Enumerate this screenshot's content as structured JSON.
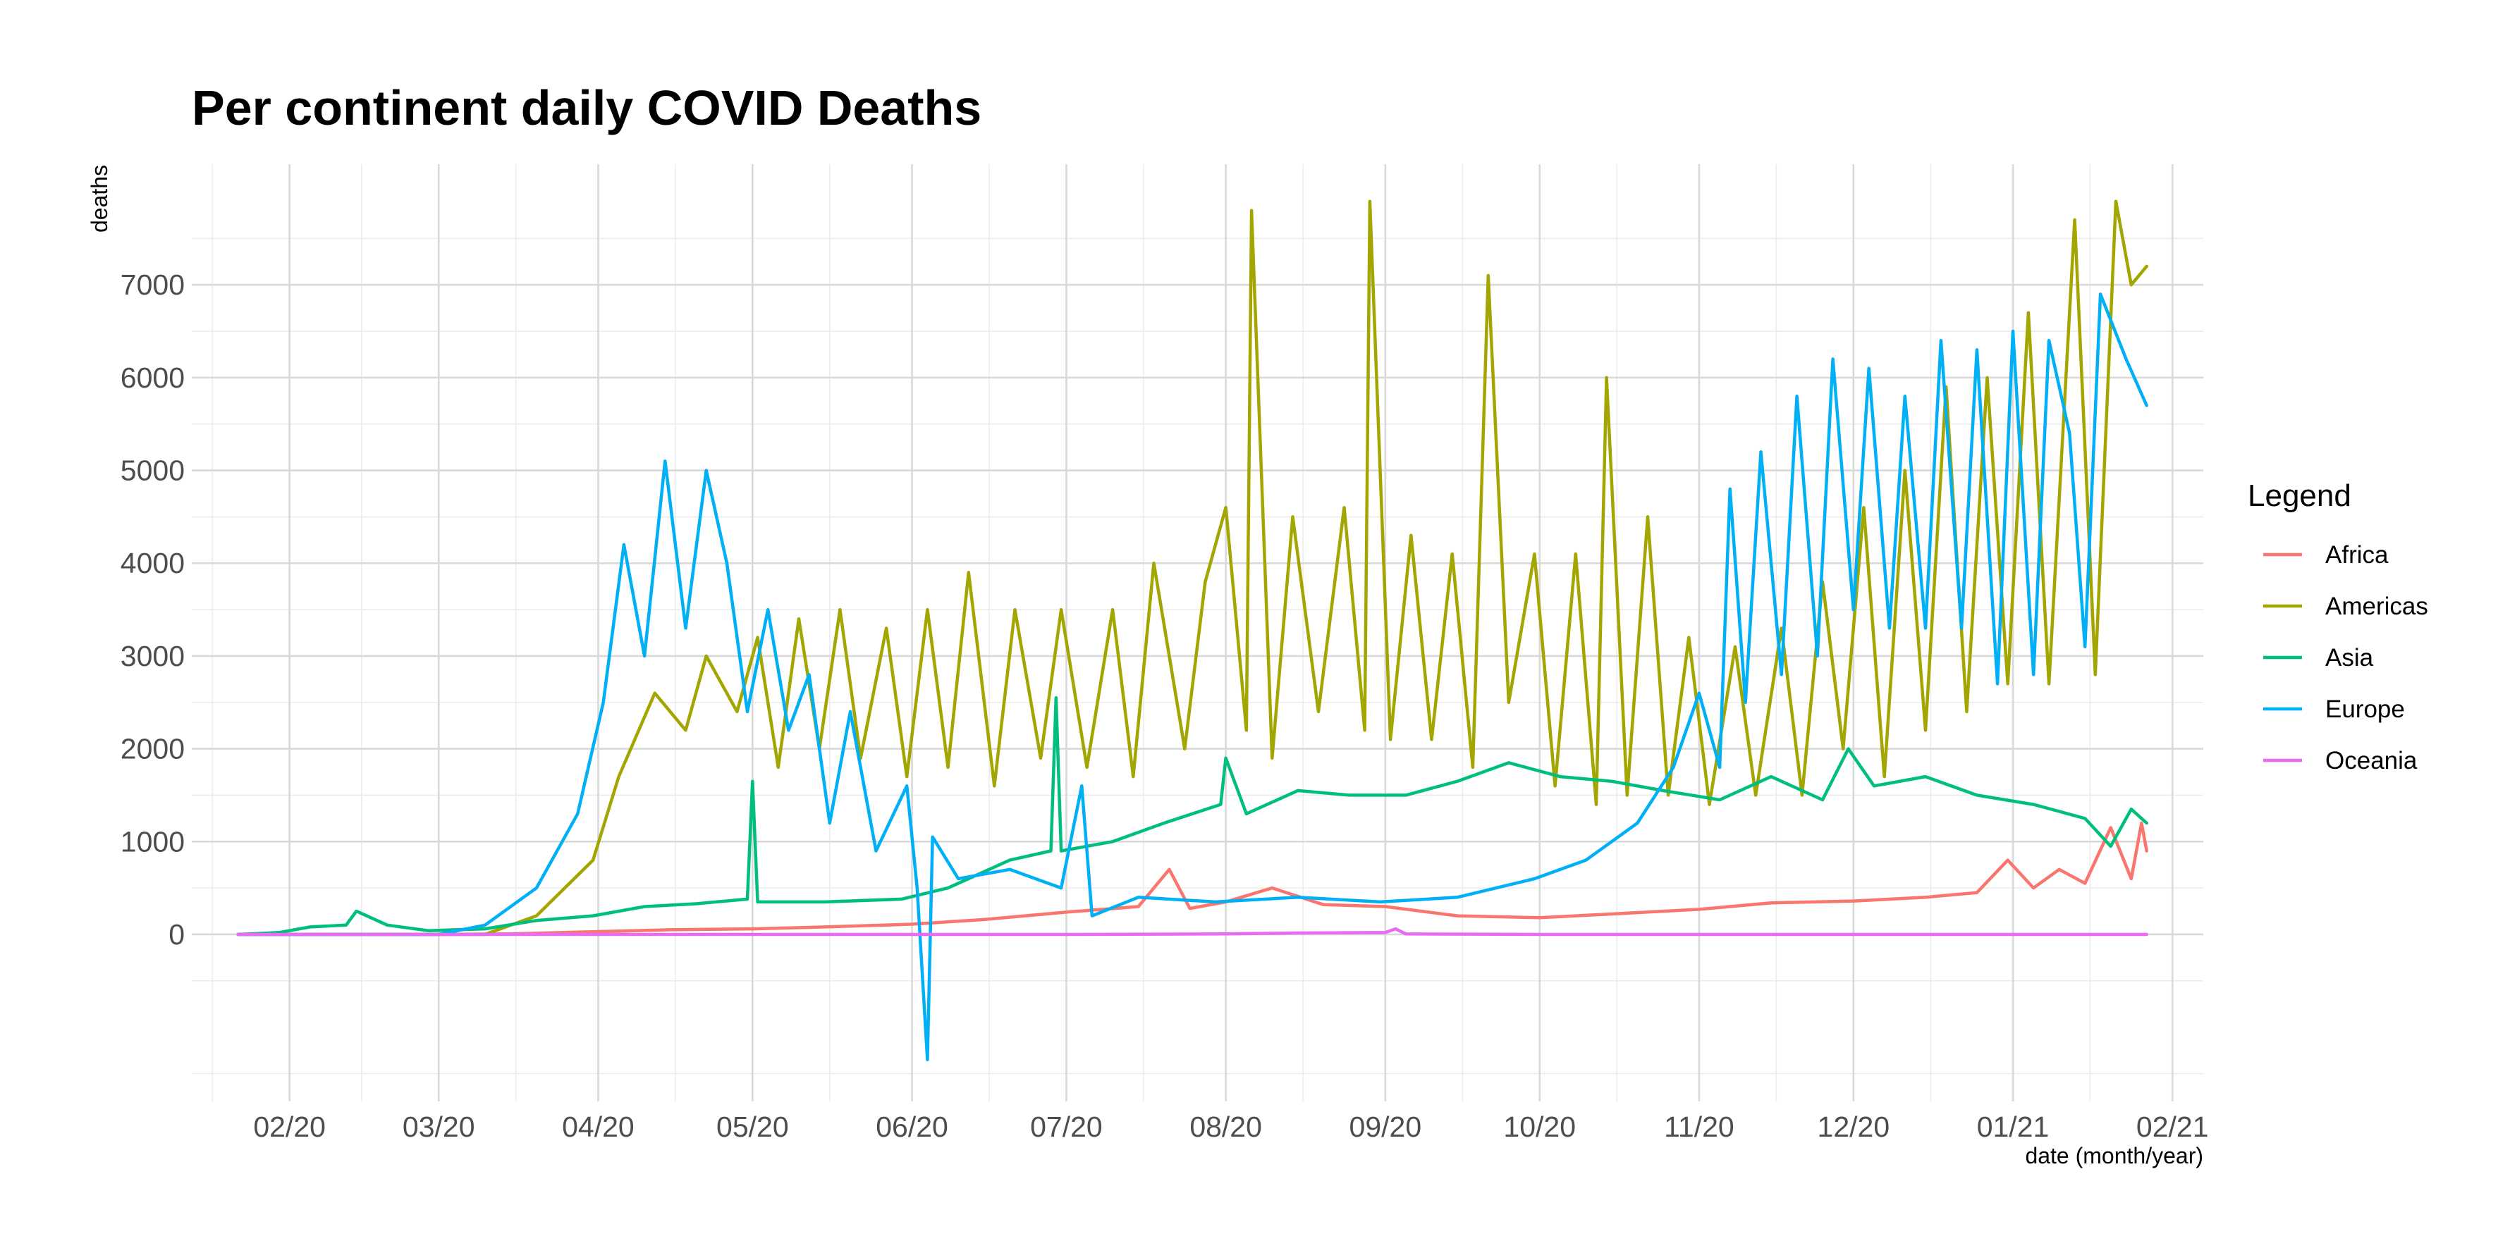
{
  "chart_data": {
    "type": "line",
    "title": "Per continent daily COVID Deaths",
    "xlabel": "date (month/year)",
    "ylabel": "deaths",
    "x_range": [
      "2020-01-22",
      "2021-01-27"
    ],
    "xlim": [
      "2020-01-13",
      "2021-02-07"
    ],
    "ylim": [
      -1800,
      8300
    ],
    "x_ticks": [
      "2020-02-01",
      "2020-03-01",
      "2020-04-01",
      "2020-05-01",
      "2020-06-01",
      "2020-07-01",
      "2020-08-01",
      "2020-09-01",
      "2020-10-01",
      "2020-11-01",
      "2020-12-01",
      "2021-01-01",
      "2021-02-01"
    ],
    "x_tick_labels": [
      "02/20",
      "03/20",
      "04/20",
      "05/20",
      "06/20",
      "07/20",
      "08/20",
      "09/20",
      "10/20",
      "11/20",
      "12/20",
      "01/21",
      "02/21"
    ],
    "y_ticks": [
      0,
      1000,
      2000,
      3000,
      4000,
      5000,
      6000,
      7000
    ],
    "y_tick_labels": [
      "0",
      "1000",
      "2000",
      "3000",
      "4000",
      "5000",
      "6000",
      "7000"
    ],
    "grid": true,
    "legend": {
      "title": "Legend",
      "position": "right"
    },
    "series": [
      {
        "name": "Africa",
        "color": "#F8766D",
        "points": [
          [
            "2020-01-22",
            0
          ],
          [
            "2020-03-01",
            0
          ],
          [
            "2020-03-15",
            5
          ],
          [
            "2020-04-01",
            30
          ],
          [
            "2020-04-15",
            50
          ],
          [
            "2020-05-01",
            60
          ],
          [
            "2020-05-15",
            80
          ],
          [
            "2020-06-01",
            110
          ],
          [
            "2020-06-15",
            160
          ],
          [
            "2020-07-01",
            240
          ],
          [
            "2020-07-15",
            300
          ],
          [
            "2020-07-21",
            700
          ],
          [
            "2020-07-25",
            280
          ],
          [
            "2020-08-01",
            350
          ],
          [
            "2020-08-10",
            500
          ],
          [
            "2020-08-20",
            320
          ],
          [
            "2020-09-01",
            300
          ],
          [
            "2020-09-15",
            200
          ],
          [
            "2020-10-01",
            180
          ],
          [
            "2020-10-15",
            220
          ],
          [
            "2020-11-01",
            270
          ],
          [
            "2020-11-15",
            340
          ],
          [
            "2020-12-01",
            360
          ],
          [
            "2020-12-15",
            400
          ],
          [
            "2020-12-25",
            450
          ],
          [
            "2020-12-31",
            800
          ],
          [
            "2021-01-05",
            500
          ],
          [
            "2021-01-10",
            700
          ],
          [
            "2021-01-15",
            550
          ],
          [
            "2021-01-20",
            1150
          ],
          [
            "2021-01-24",
            600
          ],
          [
            "2021-01-26",
            1200
          ],
          [
            "2021-01-27",
            900
          ]
        ]
      },
      {
        "name": "Americas",
        "color": "#A3A500",
        "points": [
          [
            "2020-01-22",
            0
          ],
          [
            "2020-03-10",
            0
          ],
          [
            "2020-03-20",
            200
          ],
          [
            "2020-03-31",
            800
          ],
          [
            "2020-04-05",
            1700
          ],
          [
            "2020-04-12",
            2600
          ],
          [
            "2020-04-18",
            2200
          ],
          [
            "2020-04-22",
            3000
          ],
          [
            "2020-04-28",
            2400
          ],
          [
            "2020-05-02",
            3200
          ],
          [
            "2020-05-06",
            1800
          ],
          [
            "2020-05-10",
            3400
          ],
          [
            "2020-05-14",
            2000
          ],
          [
            "2020-05-18",
            3500
          ],
          [
            "2020-05-22",
            1900
          ],
          [
            "2020-05-27",
            3300
          ],
          [
            "2020-05-31",
            1700
          ],
          [
            "2020-06-04",
            3500
          ],
          [
            "2020-06-08",
            1800
          ],
          [
            "2020-06-12",
            3900
          ],
          [
            "2020-06-17",
            1600
          ],
          [
            "2020-06-21",
            3500
          ],
          [
            "2020-06-26",
            1900
          ],
          [
            "2020-06-30",
            3500
          ],
          [
            "2020-07-05",
            1800
          ],
          [
            "2020-07-10",
            3500
          ],
          [
            "2020-07-14",
            1700
          ],
          [
            "2020-07-18",
            4000
          ],
          [
            "2020-07-24",
            2000
          ],
          [
            "2020-07-28",
            3800
          ],
          [
            "2020-08-01",
            4600
          ],
          [
            "2020-08-05",
            2200
          ],
          [
            "2020-08-06",
            7800
          ],
          [
            "2020-08-10",
            1900
          ],
          [
            "2020-08-14",
            4500
          ],
          [
            "2020-08-19",
            2400
          ],
          [
            "2020-08-24",
            4600
          ],
          [
            "2020-08-28",
            2200
          ],
          [
            "2020-08-29",
            7900
          ],
          [
            "2020-09-02",
            2100
          ],
          [
            "2020-09-06",
            4300
          ],
          [
            "2020-09-10",
            2100
          ],
          [
            "2020-09-14",
            4100
          ],
          [
            "2020-09-18",
            1800
          ],
          [
            "2020-09-21",
            7100
          ],
          [
            "2020-09-25",
            2500
          ],
          [
            "2020-09-30",
            4100
          ],
          [
            "2020-10-04",
            1600
          ],
          [
            "2020-10-08",
            4100
          ],
          [
            "2020-10-12",
            1400
          ],
          [
            "2020-10-14",
            6000
          ],
          [
            "2020-10-18",
            1500
          ],
          [
            "2020-10-22",
            4500
          ],
          [
            "2020-10-26",
            1500
          ],
          [
            "2020-10-30",
            3200
          ],
          [
            "2020-11-03",
            1400
          ],
          [
            "2020-11-08",
            3100
          ],
          [
            "2020-11-12",
            1500
          ],
          [
            "2020-11-17",
            3300
          ],
          [
            "2020-11-21",
            1500
          ],
          [
            "2020-11-25",
            3800
          ],
          [
            "2020-11-29",
            2000
          ],
          [
            "2020-12-03",
            4600
          ],
          [
            "2020-12-07",
            1700
          ],
          [
            "2020-12-11",
            5000
          ],
          [
            "2020-12-15",
            2200
          ],
          [
            "2020-12-19",
            5900
          ],
          [
            "2020-12-23",
            2400
          ],
          [
            "2020-12-27",
            6000
          ],
          [
            "2020-12-31",
            2700
          ],
          [
            "2021-01-04",
            6700
          ],
          [
            "2021-01-08",
            2700
          ],
          [
            "2021-01-13",
            7700
          ],
          [
            "2021-01-17",
            2800
          ],
          [
            "2021-01-21",
            7900
          ],
          [
            "2021-01-24",
            7000
          ],
          [
            "2021-01-27",
            7200
          ]
        ]
      },
      {
        "name": "Asia",
        "color": "#00BF7D",
        "points": [
          [
            "2020-01-22",
            0
          ],
          [
            "2020-01-30",
            20
          ],
          [
            "2020-02-05",
            80
          ],
          [
            "2020-02-12",
            100
          ],
          [
            "2020-02-14",
            250
          ],
          [
            "2020-02-20",
            100
          ],
          [
            "2020-02-28",
            40
          ],
          [
            "2020-03-10",
            60
          ],
          [
            "2020-03-20",
            150
          ],
          [
            "2020-03-31",
            200
          ],
          [
            "2020-04-10",
            300
          ],
          [
            "2020-04-20",
            330
          ],
          [
            "2020-04-30",
            380
          ],
          [
            "2020-05-01",
            1650
          ],
          [
            "2020-05-02",
            350
          ],
          [
            "2020-05-15",
            350
          ],
          [
            "2020-05-30",
            380
          ],
          [
            "2020-06-08",
            500
          ],
          [
            "2020-06-20",
            800
          ],
          [
            "2020-06-28",
            900
          ],
          [
            "2020-06-29",
            2550
          ],
          [
            "2020-06-30",
            900
          ],
          [
            "2020-07-10",
            1000
          ],
          [
            "2020-07-20",
            1200
          ],
          [
            "2020-07-31",
            1400
          ],
          [
            "2020-08-01",
            1900
          ],
          [
            "2020-08-05",
            1300
          ],
          [
            "2020-08-15",
            1550
          ],
          [
            "2020-08-25",
            1500
          ],
          [
            "2020-09-05",
            1500
          ],
          [
            "2020-09-15",
            1650
          ],
          [
            "2020-09-25",
            1850
          ],
          [
            "2020-10-05",
            1700
          ],
          [
            "2020-10-15",
            1650
          ],
          [
            "2020-10-25",
            1550
          ],
          [
            "2020-11-05",
            1450
          ],
          [
            "2020-11-15",
            1700
          ],
          [
            "2020-11-25",
            1450
          ],
          [
            "2020-11-30",
            2000
          ],
          [
            "2020-12-05",
            1600
          ],
          [
            "2020-12-15",
            1700
          ],
          [
            "2020-12-25",
            1500
          ],
          [
            "2021-01-05",
            1400
          ],
          [
            "2021-01-15",
            1250
          ],
          [
            "2021-01-20",
            950
          ],
          [
            "2021-01-24",
            1350
          ],
          [
            "2021-01-27",
            1200
          ]
        ]
      },
      {
        "name": "Europe",
        "color": "#00B0F6",
        "points": [
          [
            "2020-01-22",
            0
          ],
          [
            "2020-03-01",
            0
          ],
          [
            "2020-03-10",
            100
          ],
          [
            "2020-03-20",
            500
          ],
          [
            "2020-03-28",
            1300
          ],
          [
            "2020-04-02",
            2500
          ],
          [
            "2020-04-06",
            4200
          ],
          [
            "2020-04-10",
            3000
          ],
          [
            "2020-04-14",
            5100
          ],
          [
            "2020-04-18",
            3300
          ],
          [
            "2020-04-22",
            5000
          ],
          [
            "2020-04-26",
            4000
          ],
          [
            "2020-04-30",
            2400
          ],
          [
            "2020-05-04",
            3500
          ],
          [
            "2020-05-08",
            2200
          ],
          [
            "2020-05-12",
            2800
          ],
          [
            "2020-05-16",
            1200
          ],
          [
            "2020-05-20",
            2400
          ],
          [
            "2020-05-25",
            900
          ],
          [
            "2020-05-31",
            1600
          ],
          [
            "2020-06-02",
            500
          ],
          [
            "2020-06-04",
            -1350
          ],
          [
            "2020-06-05",
            1050
          ],
          [
            "2020-06-10",
            600
          ],
          [
            "2020-06-20",
            700
          ],
          [
            "2020-06-30",
            500
          ],
          [
            "2020-07-04",
            1600
          ],
          [
            "2020-07-06",
            200
          ],
          [
            "2020-07-15",
            400
          ],
          [
            "2020-07-30",
            350
          ],
          [
            "2020-08-15",
            400
          ],
          [
            "2020-08-31",
            350
          ],
          [
            "2020-09-15",
            400
          ],
          [
            "2020-09-30",
            600
          ],
          [
            "2020-10-10",
            800
          ],
          [
            "2020-10-20",
            1200
          ],
          [
            "2020-10-27",
            1800
          ],
          [
            "2020-11-01",
            2600
          ],
          [
            "2020-11-05",
            1800
          ],
          [
            "2020-11-07",
            4800
          ],
          [
            "2020-11-10",
            2500
          ],
          [
            "2020-11-13",
            5200
          ],
          [
            "2020-11-17",
            2800
          ],
          [
            "2020-11-20",
            5800
          ],
          [
            "2020-11-24",
            3000
          ],
          [
            "2020-11-27",
            6200
          ],
          [
            "2020-12-01",
            3500
          ],
          [
            "2020-12-04",
            6100
          ],
          [
            "2020-12-08",
            3300
          ],
          [
            "2020-12-11",
            5800
          ],
          [
            "2020-12-15",
            3300
          ],
          [
            "2020-12-18",
            6400
          ],
          [
            "2020-12-22",
            3300
          ],
          [
            "2020-12-25",
            6300
          ],
          [
            "2020-12-29",
            2700
          ],
          [
            "2021-01-01",
            6500
          ],
          [
            "2021-01-05",
            2800
          ],
          [
            "2021-01-08",
            6400
          ],
          [
            "2021-01-12",
            5400
          ],
          [
            "2021-01-15",
            3100
          ],
          [
            "2021-01-18",
            6900
          ],
          [
            "2021-01-23",
            6200
          ],
          [
            "2021-01-27",
            5700
          ]
        ]
      },
      {
        "name": "Oceania",
        "color": "#E76BF3",
        "points": [
          [
            "2020-01-22",
            0
          ],
          [
            "2020-07-01",
            0
          ],
          [
            "2020-08-01",
            5
          ],
          [
            "2020-08-15",
            15
          ],
          [
            "2020-09-01",
            20
          ],
          [
            "2020-09-03",
            60
          ],
          [
            "2020-09-05",
            5
          ],
          [
            "2020-10-01",
            0
          ],
          [
            "2021-01-27",
            0
          ]
        ]
      }
    ]
  }
}
